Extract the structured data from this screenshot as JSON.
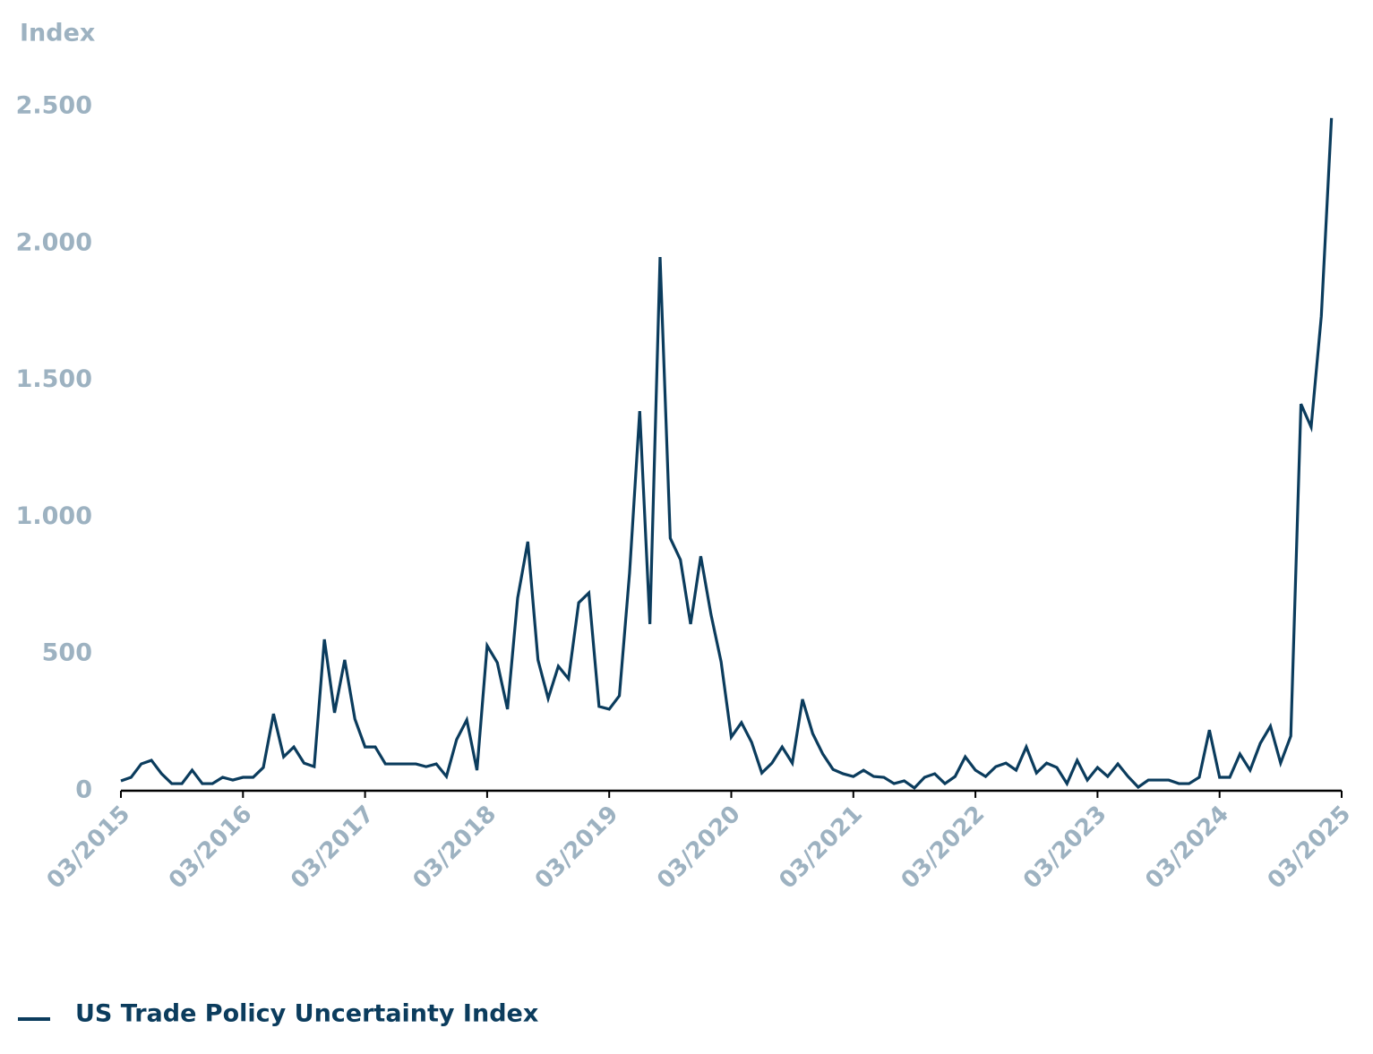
{
  "chart_data": {
    "type": "line",
    "y_label": "Index",
    "x": [
      "2015-03",
      "2015-04",
      "2015-05",
      "2015-06",
      "2015-07",
      "2015-08",
      "2015-09",
      "2015-10",
      "2015-11",
      "2015-12",
      "2016-01",
      "2016-02",
      "2016-03",
      "2016-04",
      "2016-05",
      "2016-06",
      "2016-07",
      "2016-08",
      "2016-09",
      "2016-10",
      "2016-11",
      "2016-12",
      "2017-01",
      "2017-02",
      "2017-03",
      "2017-04",
      "2017-05",
      "2017-06",
      "2017-07",
      "2017-08",
      "2017-09",
      "2017-10",
      "2017-11",
      "2017-12",
      "2018-01",
      "2018-02",
      "2018-03",
      "2018-04",
      "2018-05",
      "2018-06",
      "2018-07",
      "2018-08",
      "2018-09",
      "2018-10",
      "2018-11",
      "2018-12",
      "2019-01",
      "2019-02",
      "2019-03",
      "2019-04",
      "2019-05",
      "2019-06",
      "2019-07",
      "2019-08",
      "2019-09",
      "2019-10",
      "2019-11",
      "2019-12",
      "2020-01",
      "2020-02",
      "2020-03",
      "2020-04",
      "2020-05",
      "2020-06",
      "2020-07",
      "2020-08",
      "2020-09",
      "2020-10",
      "2020-11",
      "2020-12",
      "2021-01",
      "2021-02",
      "2021-03",
      "2021-04",
      "2021-05",
      "2021-06",
      "2021-07",
      "2021-08",
      "2021-09",
      "2021-10",
      "2021-11",
      "2021-12",
      "2022-01",
      "2022-02",
      "2022-03",
      "2022-04",
      "2022-05",
      "2022-06",
      "2022-07",
      "2022-08",
      "2022-09",
      "2022-10",
      "2022-11",
      "2022-12",
      "2023-01",
      "2023-02",
      "2023-03",
      "2023-04",
      "2023-05",
      "2023-06",
      "2023-07",
      "2023-08",
      "2023-09",
      "2023-10",
      "2023-11",
      "2023-12",
      "2024-01",
      "2024-02",
      "2024-03",
      "2024-04",
      "2024-05",
      "2024-06",
      "2024-07",
      "2024-08",
      "2024-09",
      "2024-10",
      "2024-11",
      "2024-12",
      "2025-01",
      "2025-02"
    ],
    "series": [
      {
        "name": "US Trade Policy Uncertainty Index",
        "color": "#0b3c5d",
        "values": [
          36,
          49,
          98,
          111,
          62,
          26,
          26,
          75,
          26,
          26,
          49,
          39,
          49,
          49,
          85,
          281,
          124,
          160,
          101,
          88,
          553,
          285,
          478,
          262,
          160,
          160,
          98,
          98,
          98,
          98,
          88,
          98,
          52,
          187,
          259,
          75,
          530,
          468,
          298,
          704,
          910,
          478,
          337,
          455,
          409,
          687,
          723,
          308,
          298,
          347,
          795,
          1387,
          609,
          1950,
          923,
          844,
          609,
          857,
          645,
          471,
          196,
          249,
          177,
          65,
          101,
          160,
          101,
          334,
          209,
          134,
          78,
          62,
          52,
          75,
          52,
          49,
          26,
          36,
          10,
          49,
          62,
          26,
          52,
          124,
          75,
          52,
          88,
          101,
          75,
          160,
          65,
          101,
          85,
          26,
          111,
          39,
          85,
          52,
          98,
          52,
          13,
          39,
          39,
          39,
          26,
          26,
          49,
          222,
          49,
          49,
          134,
          75,
          173,
          236,
          101,
          200,
          1413,
          1329,
          1734,
          2458
        ]
      }
    ],
    "xlim": [
      "2015-03",
      "2025-03"
    ],
    "xticks": [
      {
        "value": "2015-03",
        "label": "03/2015"
      },
      {
        "value": "2016-03",
        "label": "03/2016"
      },
      {
        "value": "2017-03",
        "label": "03/2017"
      },
      {
        "value": "2018-03",
        "label": "03/2018"
      },
      {
        "value": "2019-03",
        "label": "03/2019"
      },
      {
        "value": "2020-03",
        "label": "03/2020"
      },
      {
        "value": "2021-03",
        "label": "03/2021"
      },
      {
        "value": "2022-03",
        "label": "03/2022"
      },
      {
        "value": "2023-03",
        "label": "03/2023"
      },
      {
        "value": "2024-03",
        "label": "03/2024"
      },
      {
        "value": "2025-03",
        "label": "03/2025"
      }
    ],
    "ylim": [
      0,
      2500
    ],
    "yticks": [
      0,
      500,
      {
        "value": 1000,
        "label": "1.000"
      },
      {
        "value": 1500,
        "label": "1.500"
      },
      {
        "value": 2000,
        "label": "2.000"
      },
      {
        "value": 2500,
        "label": "2.500"
      }
    ],
    "grid": false
  }
}
